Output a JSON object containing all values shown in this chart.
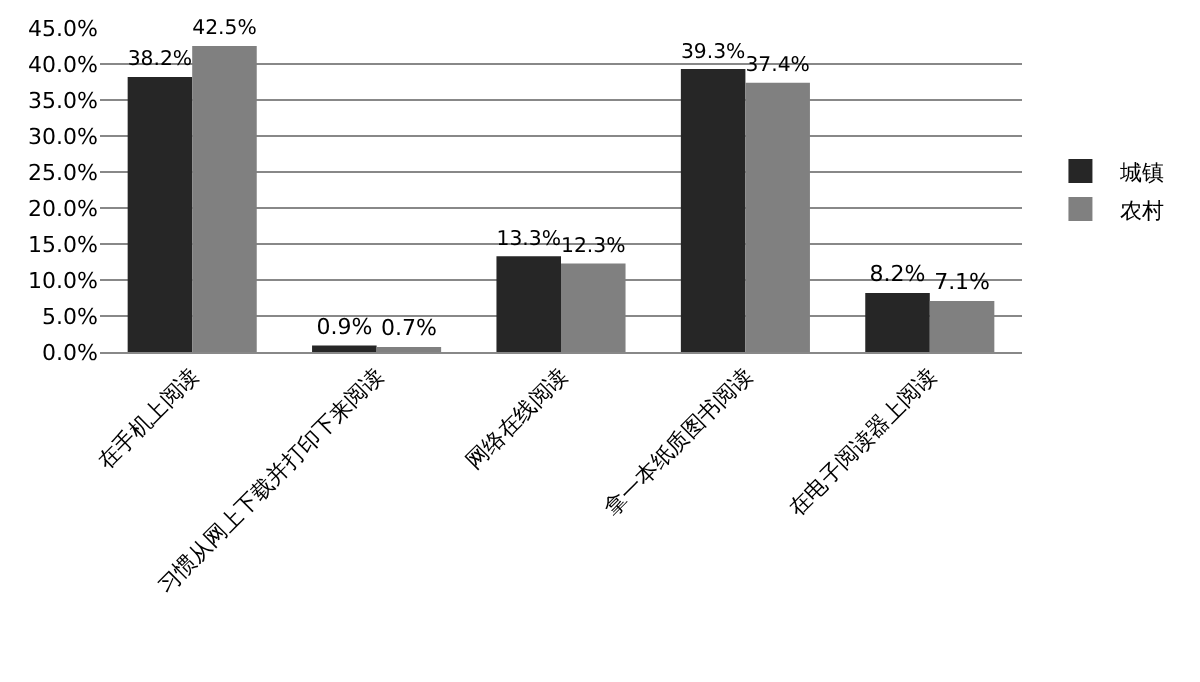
{
  "chart_data": {
    "type": "bar",
    "categories": [
      "在手机上阅读",
      "习惯从网上下载并打印下来阅读",
      "网络在线阅读",
      "拿一本纸质图书阅读",
      "在电子阅读器上阅读"
    ],
    "series": [
      {
        "name": "城镇",
        "color": "#262626",
        "values": [
          38.2,
          0.9,
          13.3,
          39.3,
          8.2
        ],
        "value_labels": [
          "38.2%",
          "0.9%",
          "13.3%",
          "39.3%",
          "8.2%"
        ]
      },
      {
        "name": "农村",
        "color": "#808080",
        "values": [
          42.5,
          0.7,
          12.3,
          37.4,
          7.1
        ],
        "value_labels": [
          "42.5%",
          "0.7%",
          "12.3%",
          "37.4%",
          "7.1%"
        ]
      }
    ],
    "ylim": [
      0,
      45
    ],
    "yticks": [
      {
        "value": 0,
        "label": "0.0%"
      },
      {
        "value": 5,
        "label": "5.0%"
      },
      {
        "value": 10,
        "label": "10.0%"
      },
      {
        "value": 15,
        "label": "15.0%"
      },
      {
        "value": 20,
        "label": "20.0%"
      },
      {
        "value": 25,
        "label": "25.0%"
      },
      {
        "value": 30,
        "label": "30.0%"
      },
      {
        "value": 35,
        "label": "35.0%"
      },
      {
        "value": 40,
        "label": "40.0%"
      },
      {
        "value": 45,
        "label": "45.0%"
      }
    ],
    "grid": "y",
    "legend": "right"
  }
}
